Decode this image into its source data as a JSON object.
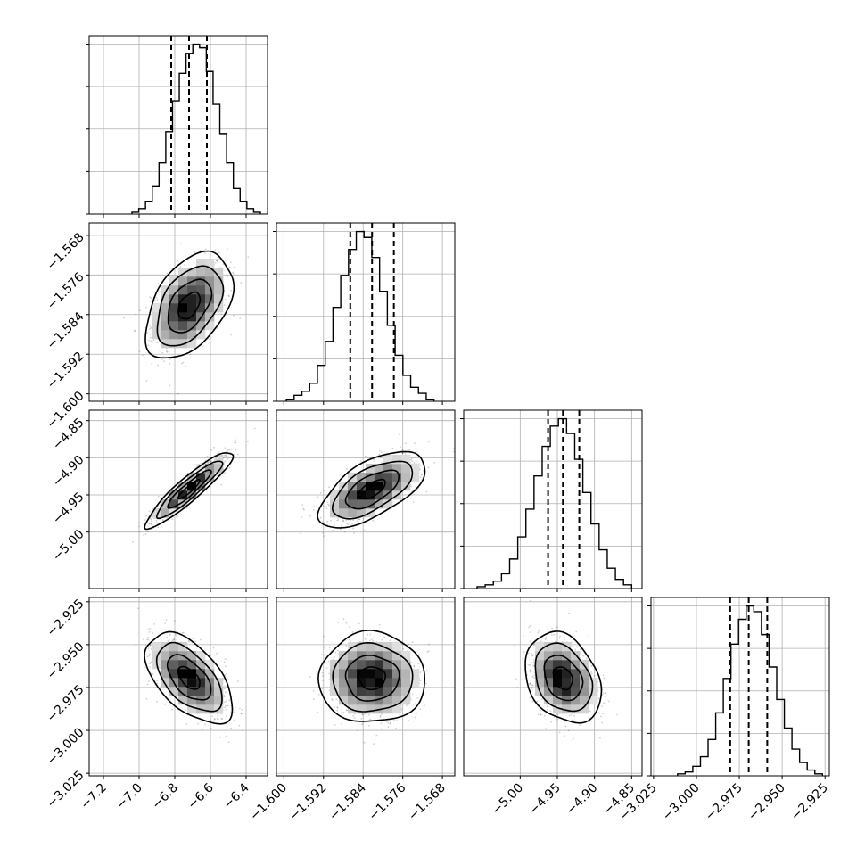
{
  "chart_data": {
    "type": "corner",
    "parameters": [
      {
        "range": [
          -7.28,
          -6.28
        ],
        "ticks": [
          "-7.2",
          "-7.0",
          "-6.8",
          "-6.6",
          "-6.4"
        ],
        "tick_values": [
          -7.2,
          -7.0,
          -6.8,
          -6.6,
          -6.4
        ],
        "quantiles": [
          -6.82,
          -6.72,
          -6.62
        ],
        "median": -6.72,
        "sigma": 0.1,
        "hist_bins_x": [
          -7.04,
          -6.32
        ],
        "hist": [
          1,
          3,
          7,
          15,
          28,
          45,
          62,
          77,
          88,
          93,
          91,
          78,
          60,
          44,
          28,
          14,
          7,
          3,
          1
        ]
      },
      {
        "range": [
          -1.6015,
          -1.5655
        ],
        "ticks": [
          "-1.600",
          "-1.592",
          "-1.584",
          "-1.576",
          "-1.568"
        ],
        "tick_values": [
          -1.6,
          -1.592,
          -1.584,
          -1.576,
          -1.568
        ],
        "quantiles": [
          -1.5866,
          -1.5822,
          -1.5778
        ],
        "median": -1.5822,
        "sigma": 0.0044,
        "hist_bins_x": [
          -1.5995,
          -1.5697
        ],
        "hist": [
          1,
          3,
          5,
          9,
          18,
          30,
          47,
          63,
          76,
          85,
          82,
          72,
          55,
          38,
          23,
          13,
          7,
          4,
          1
        ]
      },
      {
        "range": [
          -5.076,
          -4.836
        ],
        "ticks": [
          "-5.00",
          "-4.95",
          "-4.90",
          "-4.85"
        ],
        "tick_values": [
          -5.0,
          -4.95,
          -4.9,
          -4.85
        ],
        "quantiles": [
          -4.9625,
          -4.9425,
          -4.9205
        ],
        "median": -4.9425,
        "sigma": 0.021,
        "hist_bins_x": [
          -5.058,
          -4.85
        ],
        "hist": [
          1,
          2,
          4,
          8,
          16,
          28,
          43,
          61,
          77,
          88,
          92,
          84,
          70,
          52,
          35,
          21,
          11,
          5,
          2
        ]
      },
      {
        "range": [
          -3.0265,
          -2.9225
        ],
        "ticks": [
          "-3.025",
          "-3.000",
          "-2.975",
          "-2.950",
          "-2.925"
        ],
        "tick_values": [
          -3.025,
          -3.0,
          -2.975,
          -2.95,
          -2.925
        ],
        "quantiles": [
          -2.9803,
          -2.9695,
          -2.9587
        ],
        "median": -2.9695,
        "sigma": 0.0108,
        "hist_bins_x": [
          -3.011,
          -2.9265
        ],
        "hist": [
          1,
          2,
          5,
          10,
          19,
          33,
          51,
          69,
          82,
          89,
          86,
          74,
          57,
          40,
          25,
          14,
          7,
          3,
          1
        ]
      }
    ],
    "correlations": {
      "1-0": 0.45,
      "2-0": 0.92,
      "2-1": 0.62,
      "3-0": -0.55,
      "3-1": 0.0,
      "3-2": -0.28
    },
    "contour_levels_sigma": [
      0.5,
      1.0,
      1.5,
      2.0
    ],
    "grid": true,
    "quantile_line_style": "dashed"
  }
}
